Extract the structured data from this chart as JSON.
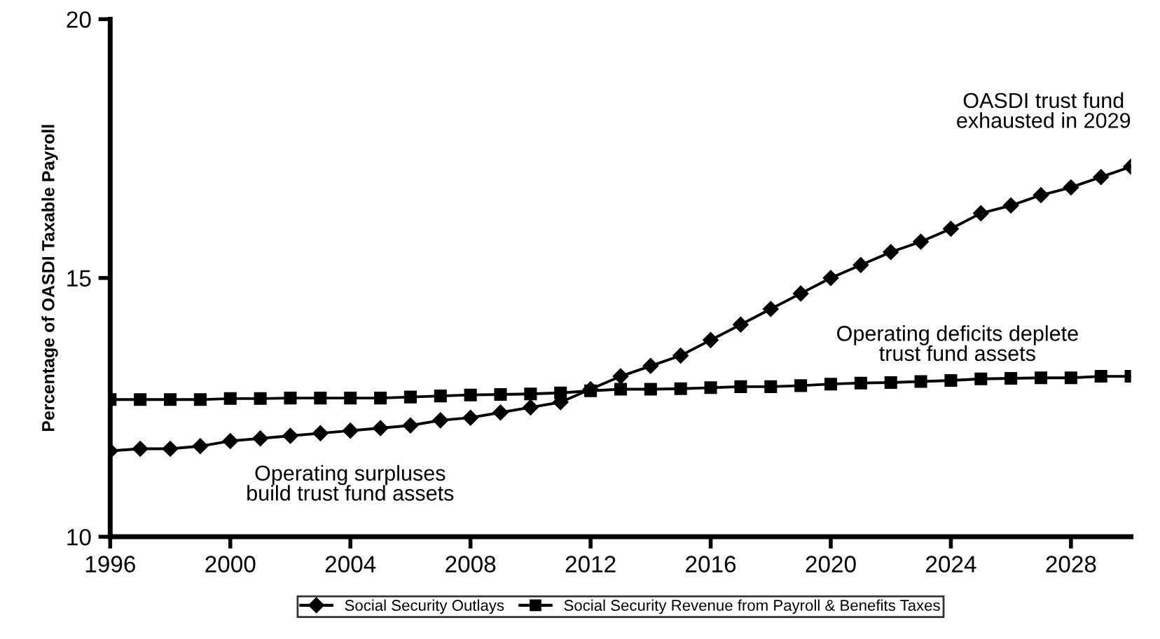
{
  "chart_data": {
    "type": "line",
    "ylabel": "Percentage of OASDI Taxable Payroll",
    "x": [
      1996,
      1997,
      1998,
      1999,
      2000,
      2001,
      2002,
      2003,
      2004,
      2005,
      2006,
      2007,
      2008,
      2009,
      2010,
      2011,
      2012,
      2013,
      2014,
      2015,
      2016,
      2017,
      2018,
      2019,
      2020,
      2021,
      2022,
      2023,
      2024,
      2025,
      2026,
      2027,
      2028,
      2029,
      2030
    ],
    "series": [
      {
        "name": "Social Security Outlays",
        "color": "#000000",
        "marker": "diamond",
        "values": [
          11.66,
          11.7,
          11.7,
          11.75,
          11.85,
          11.9,
          11.95,
          12.0,
          12.05,
          12.1,
          12.15,
          12.25,
          12.3,
          12.4,
          12.5,
          12.6,
          12.85,
          13.1,
          13.3,
          13.5,
          13.8,
          14.1,
          14.4,
          14.7,
          15.0,
          15.25,
          15.5,
          15.7,
          15.95,
          16.25,
          16.4,
          16.6,
          16.75,
          16.95,
          17.15
        ]
      },
      {
        "name": "Social Security Revenue from Payroll & Benefits Taxes",
        "color": "#000000",
        "marker": "square",
        "values": [
          12.65,
          12.65,
          12.65,
          12.65,
          12.67,
          12.67,
          12.68,
          12.68,
          12.68,
          12.68,
          12.7,
          12.72,
          12.74,
          12.75,
          12.76,
          12.78,
          12.82,
          12.85,
          12.85,
          12.86,
          12.88,
          12.9,
          12.9,
          12.92,
          12.95,
          12.97,
          12.98,
          13.0,
          13.02,
          13.05,
          13.06,
          13.07,
          13.07,
          13.1,
          13.1
        ]
      }
    ],
    "xlim": [
      1996,
      2030
    ],
    "xticks": [
      1996,
      2000,
      2004,
      2008,
      2012,
      2016,
      2020,
      2024,
      2028
    ],
    "ylim": [
      10,
      20
    ],
    "yticks": [
      10,
      15,
      20
    ],
    "annotations": [
      "Operating surpluses\nbuild trust fund assets",
      "Operating deficits deplete\ntrust fund assets",
      "OASDI trust fund\nexhausted in 2029"
    ],
    "grid": false,
    "legend": "bottom",
    "line_style": "solid"
  }
}
